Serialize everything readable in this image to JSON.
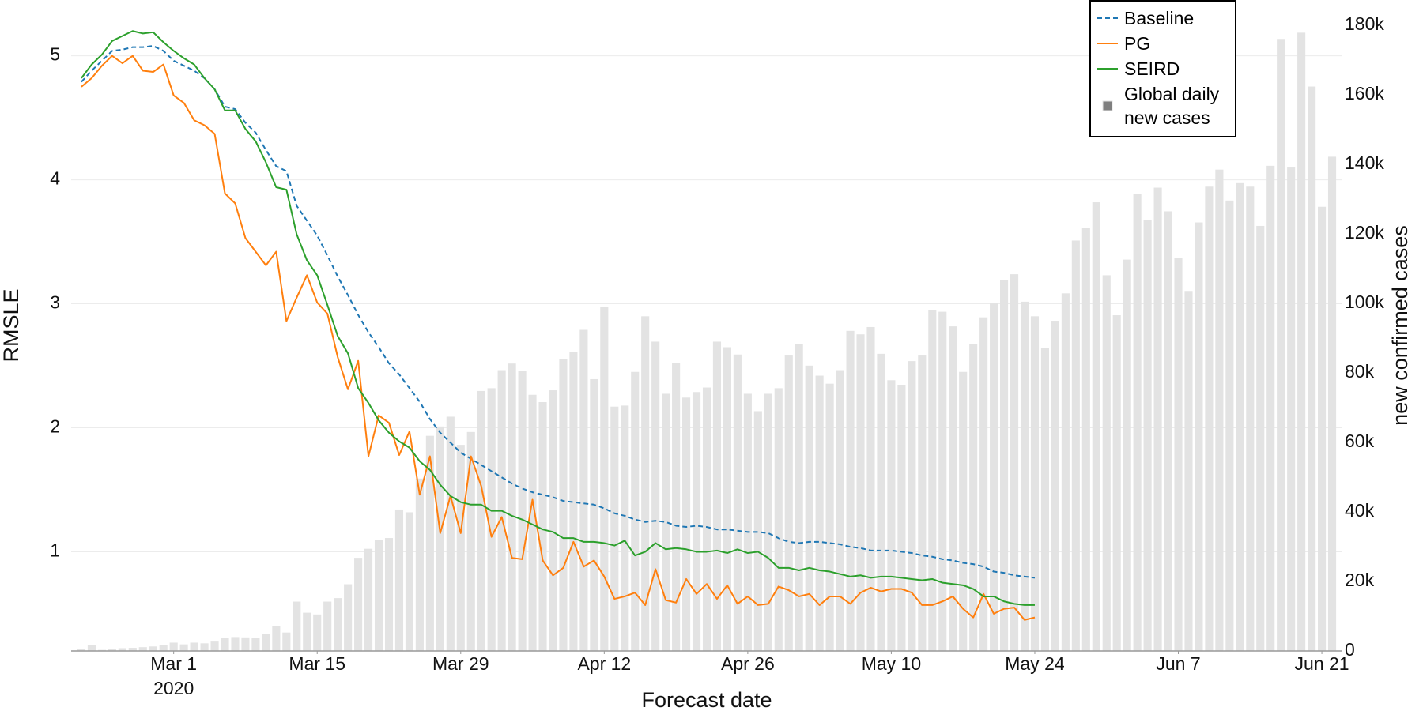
{
  "chart_data": {
    "type": "line",
    "x_label": "Forecast date",
    "y_label": "RMSLE",
    "y2_label": "new confirmed cases",
    "grid": true,
    "legend": "top-right",
    "xlim": [
      "2020-02-20",
      "2020-06-23"
    ],
    "xticks": [
      {
        "value": "2020-03-01",
        "label": "Mar 1",
        "sublabel": "2020"
      },
      {
        "value": "2020-03-15",
        "label": "Mar 15"
      },
      {
        "value": "2020-03-29",
        "label": "Mar 29"
      },
      {
        "value": "2020-04-12",
        "label": "Apr 12"
      },
      {
        "value": "2020-04-26",
        "label": "Apr 26"
      },
      {
        "value": "2020-05-10",
        "label": "May 10"
      },
      {
        "value": "2020-05-24",
        "label": "May 24"
      },
      {
        "value": "2020-06-07",
        "label": "Jun 7"
      },
      {
        "value": "2020-06-21",
        "label": "Jun 21"
      }
    ],
    "ylim": [
      0.2,
      5.45
    ],
    "yticks": [
      1,
      2,
      3,
      4,
      5
    ],
    "y2lim": [
      0,
      187300
    ],
    "y2ticks": [
      0,
      {
        "value": 20000,
        "label": "20k"
      },
      {
        "value": 40000,
        "label": "40k"
      },
      {
        "value": 60000,
        "label": "60k"
      },
      {
        "value": 80000,
        "label": "80k"
      },
      {
        "value": 100000,
        "label": "100k"
      },
      {
        "value": 120000,
        "label": "120k"
      },
      {
        "value": 140000,
        "label": "140k"
      },
      {
        "value": 160000,
        "label": "160k"
      },
      {
        "value": 180000,
        "label": "180k"
      }
    ],
    "x": [
      "2020-02-21",
      "2020-02-22",
      "2020-02-23",
      "2020-02-24",
      "2020-02-25",
      "2020-02-26",
      "2020-02-27",
      "2020-02-28",
      "2020-02-29",
      "2020-03-01",
      "2020-03-02",
      "2020-03-03",
      "2020-03-04",
      "2020-03-05",
      "2020-03-06",
      "2020-03-07",
      "2020-03-08",
      "2020-03-09",
      "2020-03-10",
      "2020-03-11",
      "2020-03-12",
      "2020-03-13",
      "2020-03-14",
      "2020-03-15",
      "2020-03-16",
      "2020-03-17",
      "2020-03-18",
      "2020-03-19",
      "2020-03-20",
      "2020-03-21",
      "2020-03-22",
      "2020-03-23",
      "2020-03-24",
      "2020-03-25",
      "2020-03-26",
      "2020-03-27",
      "2020-03-28",
      "2020-03-29",
      "2020-03-30",
      "2020-03-31",
      "2020-04-01",
      "2020-04-02",
      "2020-04-03",
      "2020-04-04",
      "2020-04-05",
      "2020-04-06",
      "2020-04-07",
      "2020-04-08",
      "2020-04-09",
      "2020-04-10",
      "2020-04-11",
      "2020-04-12",
      "2020-04-13",
      "2020-04-14",
      "2020-04-15",
      "2020-04-16",
      "2020-04-17",
      "2020-04-18",
      "2020-04-19",
      "2020-04-20",
      "2020-04-21",
      "2020-04-22",
      "2020-04-23",
      "2020-04-24",
      "2020-04-25",
      "2020-04-26",
      "2020-04-27",
      "2020-04-28",
      "2020-04-29",
      "2020-04-30",
      "2020-05-01",
      "2020-05-02",
      "2020-05-03",
      "2020-05-04",
      "2020-05-05",
      "2020-05-06",
      "2020-05-07",
      "2020-05-08",
      "2020-05-09",
      "2020-05-10",
      "2020-05-11",
      "2020-05-12",
      "2020-05-13",
      "2020-05-14",
      "2020-05-15",
      "2020-05-16",
      "2020-05-17",
      "2020-05-18",
      "2020-05-19",
      "2020-05-20",
      "2020-05-21",
      "2020-05-22",
      "2020-05-23",
      "2020-05-24",
      "2020-05-25",
      "2020-05-26",
      "2020-05-27",
      "2020-05-28",
      "2020-05-29",
      "2020-05-30",
      "2020-05-31",
      "2020-06-01",
      "2020-06-02",
      "2020-06-03",
      "2020-06-04",
      "2020-06-05",
      "2020-06-06",
      "2020-06-07",
      "2020-06-08",
      "2020-06-09",
      "2020-06-10",
      "2020-06-11",
      "2020-06-12",
      "2020-06-13",
      "2020-06-14",
      "2020-06-15",
      "2020-06-16",
      "2020-06-17",
      "2020-06-18",
      "2020-06-19",
      "2020-06-20",
      "2020-06-21",
      "2020-06-22"
    ],
    "series": [
      {
        "name": "Baseline",
        "color": "#1f77b4",
        "dash": true,
        "values": [
          4.79,
          4.88,
          4.96,
          5.04,
          5.05,
          5.07,
          5.07,
          5.08,
          5.04,
          4.96,
          4.92,
          4.88,
          4.82,
          4.73,
          4.59,
          4.57,
          4.46,
          4.38,
          4.24,
          4.11,
          4.07,
          3.79,
          3.67,
          3.55,
          3.39,
          3.22,
          3.07,
          2.91,
          2.77,
          2.65,
          2.52,
          2.43,
          2.32,
          2.21,
          2.07,
          1.96,
          1.88,
          1.8,
          1.75,
          1.7,
          1.65,
          1.6,
          1.55,
          1.51,
          1.48,
          1.46,
          1.44,
          1.41,
          1.4,
          1.39,
          1.38,
          1.35,
          1.31,
          1.29,
          1.26,
          1.24,
          1.25,
          1.24,
          1.21,
          1.2,
          1.21,
          1.2,
          1.18,
          1.18,
          1.17,
          1.16,
          1.16,
          1.15,
          1.11,
          1.08,
          1.07,
          1.08,
          1.08,
          1.07,
          1.06,
          1.04,
          1.03,
          1.01,
          1.01,
          1.01,
          1.0,
          0.99,
          0.97,
          0.96,
          0.94,
          0.93,
          0.91,
          0.9,
          0.88,
          0.84,
          0.83,
          0.81,
          0.8,
          0.79,
          null,
          null,
          null,
          null,
          null,
          null,
          null,
          null,
          null,
          null,
          null,
          null,
          null,
          null,
          null,
          null,
          null,
          null,
          null,
          null,
          null,
          null,
          null,
          null,
          null,
          null,
          null,
          null,
          null
        ]
      },
      {
        "name": "PG",
        "color": "#ff7f0e",
        "values": [
          4.75,
          4.82,
          4.92,
          5.0,
          4.94,
          5.0,
          4.88,
          4.87,
          4.93,
          4.68,
          4.62,
          4.48,
          4.44,
          4.37,
          3.89,
          3.81,
          3.53,
          3.42,
          3.31,
          3.42,
          2.86,
          3.05,
          3.23,
          3.01,
          2.92,
          2.57,
          2.31,
          2.54,
          1.77,
          2.1,
          2.04,
          1.78,
          1.97,
          1.46,
          1.77,
          1.15,
          1.45,
          1.15,
          1.77,
          1.53,
          1.12,
          1.28,
          0.95,
          0.94,
          1.42,
          0.93,
          0.81,
          0.87,
          1.08,
          0.88,
          0.93,
          0.8,
          0.62,
          0.64,
          0.67,
          0.57,
          0.86,
          0.61,
          0.59,
          0.78,
          0.66,
          0.74,
          0.62,
          0.73,
          0.58,
          0.64,
          0.57,
          0.58,
          0.72,
          0.69,
          0.64,
          0.66,
          0.57,
          0.64,
          0.64,
          0.58,
          0.67,
          0.71,
          0.68,
          0.7,
          0.7,
          0.67,
          0.57,
          0.57,
          0.6,
          0.64,
          0.54,
          0.47,
          0.66,
          0.5,
          0.54,
          0.55,
          0.45,
          0.47,
          null,
          null,
          null,
          null,
          null,
          null,
          null,
          null,
          null,
          null,
          null,
          null,
          null,
          null,
          null,
          null,
          null,
          null,
          null,
          null,
          null,
          null,
          null,
          null,
          null,
          null,
          null,
          null,
          null
        ]
      },
      {
        "name": "SEIRD",
        "color": "#2ca02c",
        "values": [
          4.82,
          4.93,
          5.01,
          5.12,
          5.16,
          5.2,
          5.18,
          5.19,
          5.11,
          5.04,
          4.98,
          4.93,
          4.82,
          4.73,
          4.56,
          4.56,
          4.41,
          4.31,
          4.14,
          3.94,
          3.92,
          3.56,
          3.35,
          3.23,
          2.99,
          2.74,
          2.6,
          2.32,
          2.2,
          2.06,
          1.96,
          1.89,
          1.84,
          1.73,
          1.66,
          1.54,
          1.45,
          1.4,
          1.38,
          1.38,
          1.33,
          1.33,
          1.29,
          1.26,
          1.22,
          1.18,
          1.16,
          1.11,
          1.11,
          1.08,
          1.08,
          1.07,
          1.05,
          1.09,
          0.97,
          1.0,
          1.07,
          1.02,
          1.03,
          1.02,
          1.0,
          1.0,
          1.01,
          0.99,
          1.02,
          0.99,
          1.0,
          0.95,
          0.87,
          0.87,
          0.85,
          0.87,
          0.85,
          0.84,
          0.82,
          0.8,
          0.81,
          0.79,
          0.8,
          0.8,
          0.79,
          0.78,
          0.77,
          0.78,
          0.75,
          0.74,
          0.73,
          0.7,
          0.64,
          0.64,
          0.6,
          0.58,
          0.57,
          0.57,
          null,
          null,
          null,
          null,
          null,
          null,
          null,
          null,
          null,
          null,
          null,
          null,
          null,
          null,
          null,
          null,
          null,
          null,
          null,
          null,
          null,
          null,
          null,
          null,
          null,
          null,
          null,
          null,
          null
        ]
      },
      {
        "name": "Global daily new cases",
        "type": "bar",
        "axis": "y2",
        "color": "#e3e3e3",
        "values": [
          600,
          1600,
          300,
          500,
          800,
          900,
          1100,
          1300,
          1800,
          2400,
          1900,
          2400,
          2200,
          2700,
          3700,
          4000,
          3900,
          3800,
          4800,
          7100,
          5300,
          14200,
          11000,
          10500,
          14200,
          15200,
          19200,
          26800,
          29400,
          32000,
          32500,
          40700,
          39900,
          49600,
          61900,
          64600,
          67400,
          59300,
          63000,
          74800,
          75600,
          80800,
          82700,
          80600,
          73700,
          71600,
          75000,
          84000,
          86100,
          92400,
          78200,
          98900,
          70300,
          70600,
          80300,
          96300,
          89000,
          74000,
          82900,
          72900,
          74500,
          75800,
          89000,
          87400,
          85300,
          74000,
          69000,
          74000,
          75600,
          85000,
          88400,
          82100,
          79200,
          76900,
          80800,
          92100,
          91100,
          93200,
          85500,
          77900,
          76600,
          83400,
          85000,
          98100,
          97600,
          93400,
          80300,
          88400,
          96000,
          100000,
          106800,
          108400,
          100500,
          96300,
          87100,
          95000,
          102900,
          118100,
          121800,
          129100,
          108100,
          96600,
          112600,
          131500,
          123900,
          133300,
          126500,
          113100,
          103600,
          123300,
          133600,
          138500,
          129600,
          134600,
          133600,
          122300,
          139600,
          176100,
          139100,
          177900,
          162400,
          127800,
          142200
        ]
      }
    ]
  }
}
